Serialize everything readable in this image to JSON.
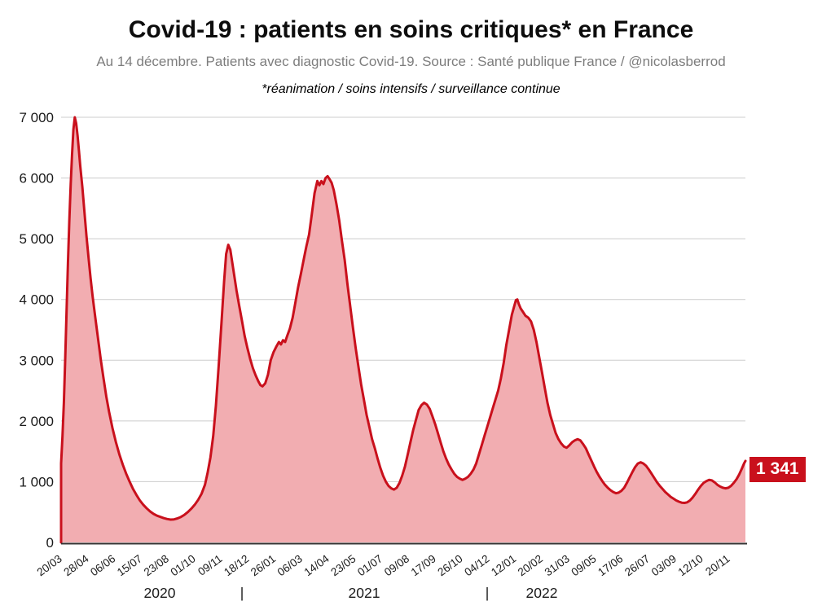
{
  "header": {
    "title": "Covid-19 : patients en soins critiques* en France",
    "subtitle": "Au 14 décembre. Patients avec diagnostic Covid-19. Source : Santé publique France / @nicolasberrod",
    "note": "*réanimation / soins intensifs / surveillance continue"
  },
  "chart_data": {
    "type": "area",
    "title": "Covid-19 : patients en soins critiques* en France",
    "x_start_date": "20/03/2020",
    "x_end_date": "14/12/2022",
    "x_total_days": 999,
    "ylim": [
      0,
      7000
    ],
    "grid": true,
    "legend": "none",
    "ytick_values": [
      0,
      1000,
      2000,
      3000,
      4000,
      5000,
      6000,
      7000
    ],
    "ytick_labels": [
      "0",
      "1 000",
      "2 000",
      "3 000",
      "4 000",
      "5 000",
      "6 000",
      "7 000"
    ],
    "xtick_interval_days": 39,
    "xtick_labels": [
      "20/03",
      "28/04",
      "06/06",
      "15/07",
      "23/08",
      "01/10",
      "09/11",
      "18/12",
      "26/01",
      "06/03",
      "14/04",
      "23/05",
      "01/07",
      "09/08",
      "17/09",
      "26/10",
      "04/12",
      "12/01",
      "20/02",
      "31/03",
      "09/05",
      "17/06",
      "26/07",
      "03/09",
      "12/10",
      "20/11"
    ],
    "year_row": [
      {
        "label": "2020",
        "x": 196
      },
      {
        "label": "|",
        "x": 297
      },
      {
        "label": "2021",
        "x": 447
      },
      {
        "label": "|",
        "x": 598
      },
      {
        "label": "2022",
        "x": 665
      }
    ],
    "last_value": 1341,
    "last_value_label": "1 341",
    "series": [
      {
        "name": "Patients en soins critiques",
        "points": [
          [
            0,
            1300
          ],
          [
            2,
            1750
          ],
          [
            4,
            2300
          ],
          [
            6,
            3000
          ],
          [
            8,
            3800
          ],
          [
            10,
            4600
          ],
          [
            12,
            5300
          ],
          [
            14,
            5900
          ],
          [
            16,
            6400
          ],
          [
            18,
            6800
          ],
          [
            20,
            7000
          ],
          [
            22,
            6900
          ],
          [
            24,
            6700
          ],
          [
            26,
            6450
          ],
          [
            28,
            6200
          ],
          [
            31,
            5850
          ],
          [
            34,
            5450
          ],
          [
            37,
            5050
          ],
          [
            40,
            4700
          ],
          [
            43,
            4350
          ],
          [
            46,
            4050
          ],
          [
            50,
            3700
          ],
          [
            54,
            3350
          ],
          [
            58,
            3000
          ],
          [
            62,
            2700
          ],
          [
            66,
            2400
          ],
          [
            70,
            2150
          ],
          [
            75,
            1880
          ],
          [
            80,
            1650
          ],
          [
            85,
            1450
          ],
          [
            90,
            1280
          ],
          [
            95,
            1130
          ],
          [
            100,
            1000
          ],
          [
            105,
            880
          ],
          [
            110,
            780
          ],
          [
            115,
            690
          ],
          [
            120,
            620
          ],
          [
            125,
            560
          ],
          [
            130,
            510
          ],
          [
            135,
            470
          ],
          [
            140,
            440
          ],
          [
            145,
            420
          ],
          [
            150,
            400
          ],
          [
            155,
            385
          ],
          [
            160,
            375
          ],
          [
            165,
            380
          ],
          [
            170,
            395
          ],
          [
            175,
            420
          ],
          [
            180,
            455
          ],
          [
            185,
            500
          ],
          [
            190,
            555
          ],
          [
            195,
            620
          ],
          [
            200,
            700
          ],
          [
            205,
            800
          ],
          [
            210,
            950
          ],
          [
            214,
            1150
          ],
          [
            218,
            1400
          ],
          [
            222,
            1750
          ],
          [
            226,
            2250
          ],
          [
            230,
            2900
          ],
          [
            234,
            3600
          ],
          [
            238,
            4300
          ],
          [
            241,
            4750
          ],
          [
            244,
            4900
          ],
          [
            247,
            4820
          ],
          [
            250,
            4600
          ],
          [
            253,
            4380
          ],
          [
            256,
            4150
          ],
          [
            260,
            3900
          ],
          [
            264,
            3650
          ],
          [
            268,
            3400
          ],
          [
            272,
            3200
          ],
          [
            276,
            3020
          ],
          [
            280,
            2870
          ],
          [
            284,
            2750
          ],
          [
            288,
            2650
          ],
          [
            291,
            2590
          ],
          [
            294,
            2570
          ],
          [
            298,
            2620
          ],
          [
            302,
            2760
          ],
          [
            306,
            3000
          ],
          [
            310,
            3130
          ],
          [
            314,
            3220
          ],
          [
            318,
            3300
          ],
          [
            321,
            3260
          ],
          [
            324,
            3330
          ],
          [
            327,
            3300
          ],
          [
            330,
            3400
          ],
          [
            334,
            3520
          ],
          [
            338,
            3700
          ],
          [
            342,
            3950
          ],
          [
            346,
            4200
          ],
          [
            350,
            4420
          ],
          [
            354,
            4650
          ],
          [
            358,
            4870
          ],
          [
            362,
            5070
          ],
          [
            366,
            5400
          ],
          [
            370,
            5750
          ],
          [
            374,
            5950
          ],
          [
            377,
            5880
          ],
          [
            380,
            5950
          ],
          [
            383,
            5900
          ],
          [
            386,
            6000
          ],
          [
            389,
            6030
          ],
          [
            392,
            5980
          ],
          [
            395,
            5920
          ],
          [
            398,
            5800
          ],
          [
            402,
            5570
          ],
          [
            406,
            5300
          ],
          [
            410,
            4970
          ],
          [
            414,
            4650
          ],
          [
            418,
            4250
          ],
          [
            422,
            3900
          ],
          [
            426,
            3540
          ],
          [
            430,
            3200
          ],
          [
            434,
            2900
          ],
          [
            438,
            2600
          ],
          [
            442,
            2350
          ],
          [
            446,
            2100
          ],
          [
            450,
            1900
          ],
          [
            454,
            1700
          ],
          [
            458,
            1550
          ],
          [
            462,
            1380
          ],
          [
            466,
            1230
          ],
          [
            470,
            1100
          ],
          [
            474,
            1000
          ],
          [
            478,
            930
          ],
          [
            482,
            890
          ],
          [
            486,
            870
          ],
          [
            490,
            900
          ],
          [
            494,
            980
          ],
          [
            498,
            1100
          ],
          [
            502,
            1250
          ],
          [
            506,
            1450
          ],
          [
            510,
            1650
          ],
          [
            514,
            1850
          ],
          [
            518,
            2020
          ],
          [
            522,
            2180
          ],
          [
            526,
            2260
          ],
          [
            530,
            2300
          ],
          [
            534,
            2270
          ],
          [
            538,
            2200
          ],
          [
            542,
            2080
          ],
          [
            546,
            1950
          ],
          [
            550,
            1800
          ],
          [
            554,
            1650
          ],
          [
            558,
            1500
          ],
          [
            562,
            1380
          ],
          [
            566,
            1280
          ],
          [
            570,
            1200
          ],
          [
            574,
            1130
          ],
          [
            578,
            1080
          ],
          [
            582,
            1050
          ],
          [
            586,
            1030
          ],
          [
            590,
            1050
          ],
          [
            594,
            1080
          ],
          [
            598,
            1130
          ],
          [
            602,
            1200
          ],
          [
            606,
            1300
          ],
          [
            610,
            1450
          ],
          [
            614,
            1600
          ],
          [
            618,
            1750
          ],
          [
            622,
            1900
          ],
          [
            626,
            2050
          ],
          [
            630,
            2200
          ],
          [
            634,
            2350
          ],
          [
            638,
            2500
          ],
          [
            642,
            2700
          ],
          [
            646,
            2950
          ],
          [
            650,
            3250
          ],
          [
            654,
            3500
          ],
          [
            658,
            3750
          ],
          [
            661,
            3870
          ],
          [
            664,
            3990
          ],
          [
            666,
            4000
          ],
          [
            668,
            3930
          ],
          [
            671,
            3850
          ],
          [
            674,
            3800
          ],
          [
            678,
            3730
          ],
          [
            682,
            3700
          ],
          [
            686,
            3640
          ],
          [
            690,
            3500
          ],
          [
            694,
            3300
          ],
          [
            698,
            3050
          ],
          [
            702,
            2800
          ],
          [
            706,
            2550
          ],
          [
            710,
            2300
          ],
          [
            714,
            2100
          ],
          [
            718,
            1950
          ],
          [
            722,
            1800
          ],
          [
            726,
            1700
          ],
          [
            730,
            1630
          ],
          [
            734,
            1580
          ],
          [
            738,
            1560
          ],
          [
            742,
            1600
          ],
          [
            746,
            1650
          ],
          [
            750,
            1680
          ],
          [
            754,
            1700
          ],
          [
            758,
            1680
          ],
          [
            762,
            1620
          ],
          [
            766,
            1550
          ],
          [
            770,
            1450
          ],
          [
            774,
            1350
          ],
          [
            778,
            1250
          ],
          [
            782,
            1160
          ],
          [
            786,
            1080
          ],
          [
            790,
            1010
          ],
          [
            794,
            950
          ],
          [
            798,
            900
          ],
          [
            802,
            860
          ],
          [
            806,
            830
          ],
          [
            810,
            810
          ],
          [
            814,
            820
          ],
          [
            818,
            850
          ],
          [
            822,
            900
          ],
          [
            826,
            980
          ],
          [
            830,
            1070
          ],
          [
            834,
            1160
          ],
          [
            838,
            1240
          ],
          [
            842,
            1300
          ],
          [
            846,
            1320
          ],
          [
            850,
            1300
          ],
          [
            854,
            1260
          ],
          [
            858,
            1200
          ],
          [
            862,
            1130
          ],
          [
            866,
            1060
          ],
          [
            870,
            990
          ],
          [
            874,
            930
          ],
          [
            878,
            880
          ],
          [
            882,
            830
          ],
          [
            886,
            790
          ],
          [
            890,
            750
          ],
          [
            894,
            720
          ],
          [
            898,
            690
          ],
          [
            902,
            670
          ],
          [
            906,
            655
          ],
          [
            910,
            650
          ],
          [
            914,
            660
          ],
          [
            918,
            690
          ],
          [
            922,
            740
          ],
          [
            926,
            800
          ],
          [
            930,
            870
          ],
          [
            934,
            930
          ],
          [
            938,
            980
          ],
          [
            942,
            1010
          ],
          [
            946,
            1030
          ],
          [
            950,
            1020
          ],
          [
            954,
            990
          ],
          [
            958,
            950
          ],
          [
            962,
            920
          ],
          [
            966,
            900
          ],
          [
            970,
            890
          ],
          [
            974,
            900
          ],
          [
            978,
            930
          ],
          [
            982,
            980
          ],
          [
            986,
            1040
          ],
          [
            990,
            1120
          ],
          [
            994,
            1220
          ],
          [
            997,
            1300
          ],
          [
            999,
            1341
          ]
        ]
      }
    ],
    "colors": {
      "line": "#c9101c",
      "fill": "#f2adb1",
      "badge_bg": "#c9101c",
      "badge_text": "#ffffff",
      "grid": "#cccccc",
      "axis": "#333333",
      "tick_text": "#1a1a1a",
      "subtitle_text": "#7d7d7d"
    }
  }
}
